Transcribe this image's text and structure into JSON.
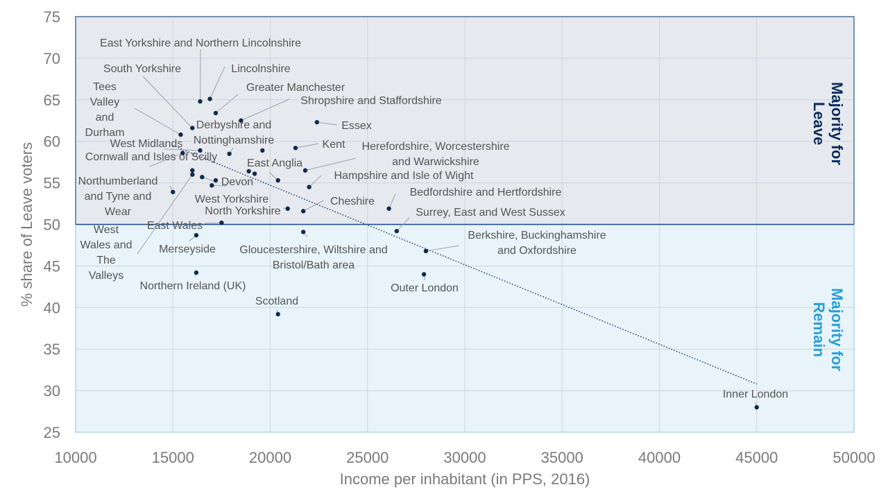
{
  "chart_data": {
    "type": "scatter",
    "title": "",
    "xlabel": "Income per inhabitant (in PPS, 2016)",
    "ylabel": "% share of Leave voters",
    "xlim": [
      10000,
      50000
    ],
    "ylim": [
      25,
      75
    ],
    "xticks": [
      "10000",
      "15000",
      "20000",
      "25000",
      "30000",
      "35000",
      "40000",
      "45000",
      "50000"
    ],
    "yticks": [
      "25",
      "30",
      "35",
      "40",
      "45",
      "50",
      "55",
      "60",
      "65",
      "70",
      "75"
    ],
    "grid": true,
    "threshold": 50,
    "regions": {
      "leave_label": [
        "Majority for",
        "Leave"
      ],
      "remain_label": [
        "Majority for",
        "Remain"
      ],
      "leave_color": "#e6e9ee",
      "remain_color": "#e8f4fa",
      "leave_text_color": "#0c2d5a",
      "remain_text_color": "#2a9fd6",
      "border_color": "#1f4f8a"
    },
    "point_color": "#102a4c",
    "trendline": {
      "style": "dotted",
      "color": "#1f3f6b",
      "from": [
        15000,
        59.5
      ],
      "to": [
        45000,
        30.8
      ]
    },
    "points": [
      {
        "x": 16400,
        "y": 64.8,
        "lines": [
          "East Yorkshire and Northern Lincolnshire"
        ]
      },
      {
        "x": 16900,
        "y": 65.1,
        "lines": [
          "Lincolnshire"
        ]
      },
      {
        "x": 16000,
        "y": 61.6,
        "lines": [
          "South Yorkshire"
        ]
      },
      {
        "x": 17200,
        "y": 63.4,
        "lines": [
          "Greater Manchester"
        ]
      },
      {
        "x": 15400,
        "y": 60.8,
        "lines": [
          "Tees",
          "Valley",
          "and",
          "Durham"
        ]
      },
      {
        "x": 18500,
        "y": 62.5,
        "lines": [
          "Shropshire and Staffordshire"
        ]
      },
      {
        "x": 22400,
        "y": 62.3,
        "lines": [
          "Essex"
        ]
      },
      {
        "x": 17900,
        "y": 58.5,
        "lines": [
          "Derbyshire and",
          "Nottinghamshire"
        ]
      },
      {
        "x": 16400,
        "y": 58.9,
        "lines": [
          "West Midlands"
        ]
      },
      {
        "x": 19600,
        "y": 58.9,
        "lines": []
      },
      {
        "x": 21300,
        "y": 59.2,
        "lines": [
          "Kent"
        ]
      },
      {
        "x": 15500,
        "y": 58.6,
        "lines": [
          "Cornwall and Isles of Scilly"
        ]
      },
      {
        "x": 21800,
        "y": 56.5,
        "lines": [
          "Herefordshire, Worcestershire",
          "and Warwickshire"
        ]
      },
      {
        "x": 18900,
        "y": 56.4,
        "lines": []
      },
      {
        "x": 19200,
        "y": 56.1,
        "lines": []
      },
      {
        "x": 16000,
        "y": 56.5,
        "lines": []
      },
      {
        "x": 20400,
        "y": 55.3,
        "lines": [
          "East Anglia"
        ]
      },
      {
        "x": 16500,
        "y": 55.7,
        "lines": [
          "Devon"
        ]
      },
      {
        "x": 17200,
        "y": 55.3,
        "lines": []
      },
      {
        "x": 17000,
        "y": 54.7,
        "lines": [
          "West Yorkshire"
        ]
      },
      {
        "x": 22000,
        "y": 54.5,
        "lines": [
          "Hampshire and Isle of Wight"
        ]
      },
      {
        "x": 15000,
        "y": 53.9,
        "lines": [
          "Northumberland",
          "and Tyne and",
          "Wear"
        ]
      },
      {
        "x": 26100,
        "y": 51.9,
        "lines": [
          "Bedfordshire and Hertfordshire"
        ]
      },
      {
        "x": 20900,
        "y": 51.9,
        "lines": [
          "North Yorkshire"
        ]
      },
      {
        "x": 21700,
        "y": 51.6,
        "lines": [
          "Cheshire"
        ]
      },
      {
        "x": 17500,
        "y": 50.2,
        "lines": [
          "East Wales"
        ]
      },
      {
        "x": 26500,
        "y": 49.2,
        "lines": [
          "Surrey, East and West Sussex"
        ]
      },
      {
        "x": 21700,
        "y": 49.1,
        "lines": [
          "Gloucestershire, Wiltshire and",
          "Bristol/Bath area"
        ]
      },
      {
        "x": 16200,
        "y": 48.7,
        "lines": [
          "Merseyside"
        ]
      },
      {
        "x": 28000,
        "y": 46.8,
        "lines": [
          "Berkshire, Buckinghamshire",
          "and Oxfordshire"
        ]
      },
      {
        "x": 16200,
        "y": 44.2,
        "lines": [
          "Northern Ireland (UK)"
        ]
      },
      {
        "x": 27900,
        "y": 44.0,
        "lines": [
          "Outer London"
        ]
      },
      {
        "x": 16000,
        "y": 56.0,
        "lines": [
          "West",
          "Wales and",
          "The",
          "Valleys"
        ]
      },
      {
        "x": 20400,
        "y": 39.2,
        "lines": [
          "Scotland"
        ]
      },
      {
        "x": 45000,
        "y": 28.0,
        "lines": [
          "Inner London"
        ]
      }
    ]
  }
}
